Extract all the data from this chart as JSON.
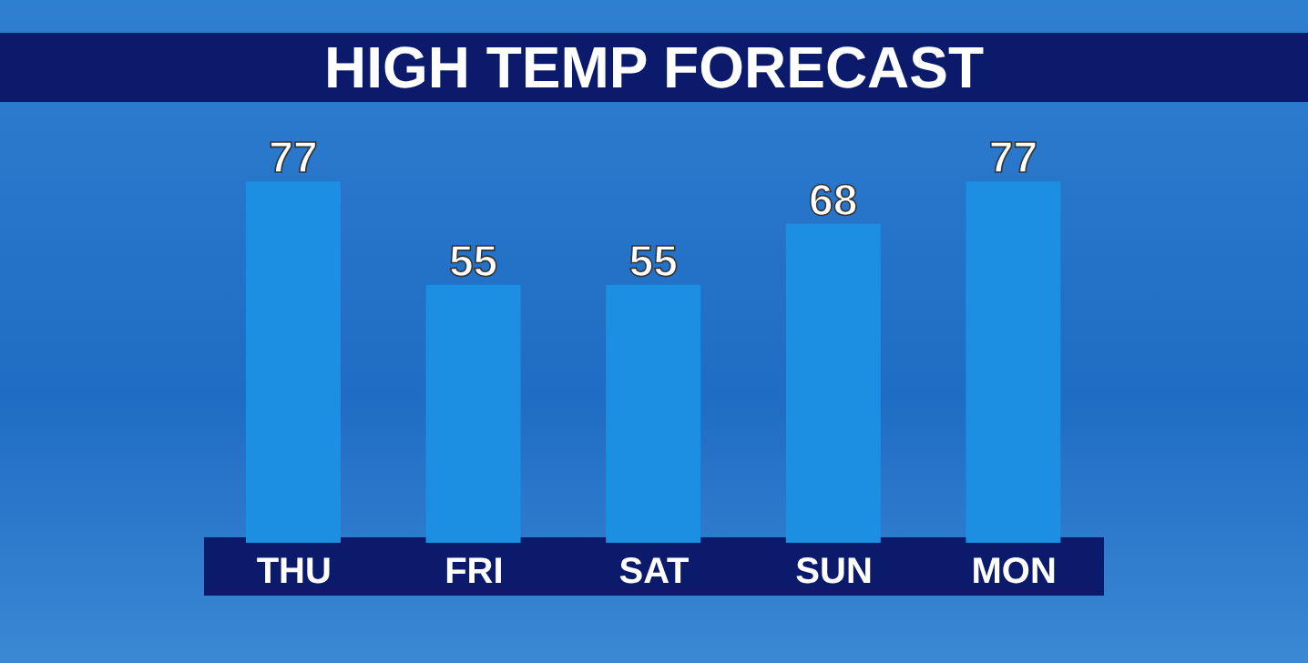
{
  "chart_data": {
    "type": "bar",
    "title": "HIGH TEMP FORECAST",
    "categories": [
      "THU",
      "FRI",
      "SAT",
      "SUN",
      "MON"
    ],
    "values": [
      77,
      55,
      55,
      68,
      77
    ],
    "color": "#1c8fe3",
    "data_labels": true
  }
}
